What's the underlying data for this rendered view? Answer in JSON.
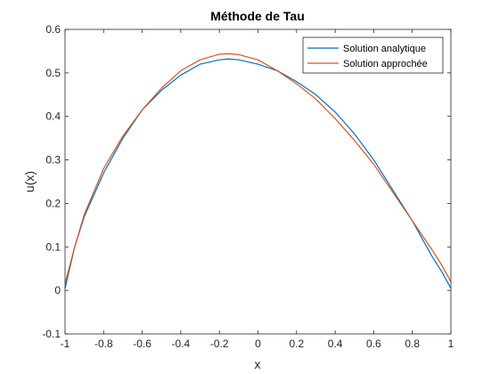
{
  "chart_data": {
    "type": "line",
    "title": "Méthode de Tau",
    "xlabel": "x",
    "ylabel": "u(x)",
    "xlim": [
      -1,
      1
    ],
    "ylim": [
      -0.1,
      0.6
    ],
    "xticks": [
      -1,
      -0.8,
      -0.6,
      -0.4,
      -0.2,
      0,
      0.2,
      0.4,
      0.6,
      0.8,
      1
    ],
    "xtick_labels": [
      "-1",
      "-0.8",
      "-0.6",
      "-0.4",
      "-0.2",
      "0",
      "0.2",
      "0.4",
      "0.6",
      "0.8",
      "1"
    ],
    "yticks": [
      -0.1,
      0,
      0.1,
      0.2,
      0.3,
      0.4,
      0.5,
      0.6
    ],
    "ytick_labels": [
      "-0.1",
      "0",
      "0.1",
      "0.2",
      "0.3",
      "0.4",
      "0.5",
      "0.6"
    ],
    "grid": false,
    "legend_position": "top-right",
    "series": [
      {
        "name": "Solution analytique",
        "color": "#0072BD",
        "x": [
          -1,
          -0.95,
          -0.9,
          -0.8,
          -0.7,
          -0.6,
          -0.5,
          -0.4,
          -0.3,
          -0.2,
          -0.15,
          -0.1,
          0,
          0.1,
          0.2,
          0.3,
          0.4,
          0.5,
          0.6,
          0.7,
          0.8,
          0.9,
          0.95,
          1
        ],
        "y": [
          0.005,
          0.1,
          0.17,
          0.27,
          0.35,
          0.415,
          0.46,
          0.495,
          0.52,
          0.53,
          0.532,
          0.53,
          0.52,
          0.505,
          0.48,
          0.45,
          0.41,
          0.36,
          0.3,
          0.23,
          0.16,
          0.08,
          0.045,
          0.005
        ]
      },
      {
        "name": "Solution approchée",
        "color": "#D95319",
        "x": [
          -1,
          -0.95,
          -0.9,
          -0.8,
          -0.7,
          -0.6,
          -0.5,
          -0.4,
          -0.3,
          -0.2,
          -0.15,
          -0.1,
          0,
          0.1,
          0.2,
          0.3,
          0.4,
          0.5,
          0.6,
          0.7,
          0.8,
          0.9,
          0.95,
          1
        ],
        "y": [
          0.015,
          0.1,
          0.175,
          0.28,
          0.355,
          0.415,
          0.465,
          0.505,
          0.53,
          0.543,
          0.544,
          0.542,
          0.53,
          0.505,
          0.475,
          0.44,
          0.395,
          0.345,
          0.29,
          0.225,
          0.16,
          0.095,
          0.06,
          0.02
        ]
      }
    ]
  }
}
